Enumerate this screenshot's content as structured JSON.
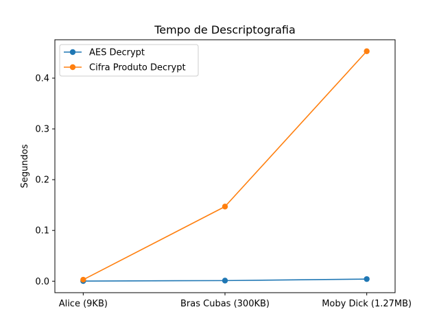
{
  "chart_data": {
    "type": "line",
    "title": "Tempo de Descriptografia",
    "xlabel": "",
    "ylabel": "Segundos",
    "categories": [
      "Alice (9KB)",
      "Bras Cubas (300KB)",
      "Moby Dick (1.27MB)"
    ],
    "series": [
      {
        "name": "AES Decrypt",
        "color": "#1f77b4",
        "marker": "circle",
        "values": [
          0.0003,
          0.0012,
          0.0042
        ]
      },
      {
        "name": "Cifra Produto Decrypt",
        "color": "#ff7f0e",
        "marker": "circle",
        "values": [
          0.003,
          0.147,
          0.453
        ]
      }
    ],
    "ylim": [
      -0.0226,
      0.4756
    ],
    "yticks": [
      0.0,
      0.1,
      0.2,
      0.3,
      0.4
    ],
    "ytick_labels": [
      "0.0",
      "0.1",
      "0.2",
      "0.3",
      "0.4"
    ],
    "grid": false,
    "legend": "upper-left"
  }
}
